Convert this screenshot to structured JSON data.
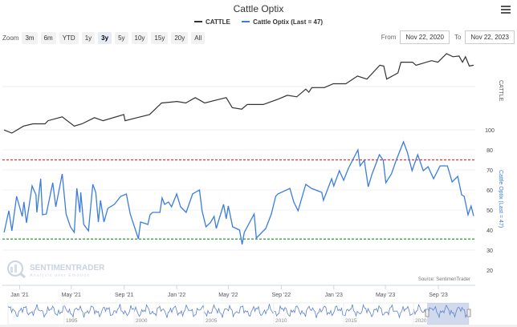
{
  "title": "Cattle Optix",
  "legend": [
    {
      "name": "CATTLE",
      "color": "#333333"
    },
    {
      "name": "Cattle Optix (Last = 47)",
      "color": "#3b7ddd"
    }
  ],
  "zoom": {
    "label": "Zoom",
    "buttons": [
      "3m",
      "6m",
      "YTD",
      "1y",
      "3y",
      "5y",
      "10y",
      "15y",
      "20y",
      "All"
    ],
    "selected": "3y"
  },
  "range": {
    "from_label": "From",
    "from": "Nov 22, 2020",
    "to_label": "To",
    "to": "Nov 22, 2023"
  },
  "icons": {
    "menu": "hamburger-menu-icon",
    "logo": "sentimentrader-logo"
  },
  "logo": {
    "name": "SENTIMENTRADER",
    "tagline": "Analysis over Emotion"
  },
  "source": "Source: SentimenTrader",
  "chart_data": {
    "type": "line",
    "x_range": [
      "2020-11-22",
      "2023-11-22"
    ],
    "x_ticks": [
      "Jan '21",
      "May '21",
      "Sep '21",
      "Jan '22",
      "May '22",
      "Sep '22",
      "Jan '23",
      "May '23",
      "Sep '23"
    ],
    "x_tick_dates": [
      "2021-01-01",
      "2021-05-01",
      "2021-09-01",
      "2022-01-01",
      "2022-05-01",
      "2022-09-01",
      "2023-01-01",
      "2023-05-01",
      "2023-09-01"
    ],
    "grid": true,
    "legend_placement": "top-center",
    "panes": [
      {
        "ylabel": "CATTLE",
        "series": [
          {
            "name": "CATTLE",
            "color": "#333333",
            "points": [
              [
                "2020-11-26",
                4
              ],
              [
                "2020-12-14",
                0
              ],
              [
                "2021-01-10",
                9
              ],
              [
                "2021-02-01",
                12
              ],
              [
                "2021-03-01",
                12
              ],
              [
                "2021-03-08",
                16
              ],
              [
                "2021-04-10",
                21
              ],
              [
                "2021-05-08",
                9
              ],
              [
                "2021-05-26",
                12
              ],
              [
                "2021-06-24",
                20
              ],
              [
                "2021-07-14",
                16
              ],
              [
                "2021-08-31",
                24
              ],
              [
                "2021-09-03",
                16
              ],
              [
                "2021-10-01",
                20
              ],
              [
                "2021-10-30",
                24
              ],
              [
                "2021-11-27",
                39
              ],
              [
                "2022-01-02",
                41
              ],
              [
                "2022-01-22",
                39
              ],
              [
                "2022-02-13",
                46
              ],
              [
                "2022-03-07",
                39
              ],
              [
                "2022-04-04",
                43
              ],
              [
                "2022-04-26",
                46
              ],
              [
                "2022-05-10",
                33
              ],
              [
                "2022-06-01",
                31
              ],
              [
                "2022-06-14",
                37
              ],
              [
                "2022-07-21",
                37
              ],
              [
                "2022-08-25",
                44
              ],
              [
                "2022-09-15",
                49
              ],
              [
                "2022-10-07",
                47
              ],
              [
                "2022-10-28",
                57
              ],
              [
                "2022-11-04",
                53
              ],
              [
                "2022-11-11",
                59
              ],
              [
                "2022-12-10",
                59
              ],
              [
                "2022-12-31",
                64
              ],
              [
                "2023-01-29",
                64
              ],
              [
                "2023-02-25",
                74
              ],
              [
                "2023-03-19",
                70
              ],
              [
                "2023-04-18",
                88
              ],
              [
                "2023-04-27",
                87
              ],
              [
                "2023-05-04",
                70
              ],
              [
                "2023-05-30",
                78
              ],
              [
                "2023-06-06",
                92
              ],
              [
                "2023-07-03",
                92
              ],
              [
                "2023-07-11",
                88
              ],
              [
                "2023-08-16",
                94
              ],
              [
                "2023-08-31",
                92
              ],
              [
                "2023-09-20",
                103
              ],
              [
                "2023-10-05",
                99
              ],
              [
                "2023-10-19",
                100
              ],
              [
                "2023-10-27",
                92
              ],
              [
                "2023-11-03",
                99
              ],
              [
                "2023-11-12",
                87
              ],
              [
                "2023-11-22",
                88
              ]
            ]
          }
        ]
      },
      {
        "ylabel": "Cattle Optix (Last = 47)",
        "y_ticks": [
          100,
          80,
          70,
          60,
          50,
          40,
          30,
          20
        ],
        "ylim": [
          20,
          90
        ],
        "reference_lines": [
          {
            "value": 75,
            "color": "#e03030",
            "style": "dashed"
          },
          {
            "value": 35.5,
            "color": "#2e9a3a",
            "style": "dashed"
          }
        ],
        "series": [
          {
            "name": "Cattle Optix (Last = 47)",
            "color": "#3b7ddd",
            "last": 47,
            "points": [
              [
                "2020-11-26",
                38.8
              ],
              [
                "2020-12-07",
                49.6
              ],
              [
                "2020-12-14",
                39.6
              ],
              [
                "2020-12-25",
                56.8
              ],
              [
                "2021-01-07",
                46.8
              ],
              [
                "2021-01-11",
                54
              ],
              [
                "2021-01-17",
                43.6
              ],
              [
                "2021-01-30",
                62
              ],
              [
                "2021-02-08",
                57.6
              ],
              [
                "2021-02-10",
                48.8
              ],
              [
                "2021-02-19",
                65.6
              ],
              [
                "2021-02-23",
                47.6
              ],
              [
                "2021-03-04",
                48
              ],
              [
                "2021-03-19",
                63.6
              ],
              [
                "2021-03-26",
                51.6
              ],
              [
                "2021-04-10",
                68
              ],
              [
                "2021-04-19",
                48
              ],
              [
                "2021-04-29",
                41.6
              ],
              [
                "2021-05-08",
                38.8
              ],
              [
                "2021-05-14",
                60.8
              ],
              [
                "2021-05-21",
                48.8
              ],
              [
                "2021-05-23",
                58.8
              ],
              [
                "2021-05-30",
                42.8
              ],
              [
                "2021-06-10",
                39.6
              ],
              [
                "2021-06-20",
                62.8
              ],
              [
                "2021-06-27",
                58.8
              ],
              [
                "2021-07-03",
                44
              ],
              [
                "2021-07-08",
                54.8
              ],
              [
                "2021-07-16",
                44
              ],
              [
                "2021-07-25",
                50.8
              ],
              [
                "2021-08-09",
                52.8
              ],
              [
                "2021-08-24",
                56.8
              ],
              [
                "2021-09-06",
                58
              ],
              [
                "2021-09-15",
                48
              ],
              [
                "2021-10-04",
                35.6
              ],
              [
                "2021-10-09",
                44
              ],
              [
                "2021-10-26",
                42.8
              ],
              [
                "2021-10-31",
                47.6
              ],
              [
                "2021-11-06",
                48.8
              ],
              [
                "2021-11-23",
                48.8
              ],
              [
                "2021-11-28",
                56
              ],
              [
                "2021-12-04",
                52.8
              ],
              [
                "2021-12-13",
                54
              ],
              [
                "2021-12-20",
                51.6
              ],
              [
                "2022-01-01",
                58
              ],
              [
                "2022-01-10",
                51.6
              ],
              [
                "2022-01-23",
                48.8
              ],
              [
                "2022-02-07",
                58
              ],
              [
                "2022-02-23",
                60
              ],
              [
                "2022-03-01",
                49.6
              ],
              [
                "2022-03-10",
                41.6
              ],
              [
                "2022-03-20",
                43.6
              ],
              [
                "2022-03-29",
                46.8
              ],
              [
                "2022-04-03",
                40.8
              ],
              [
                "2022-04-20",
                52.8
              ],
              [
                "2022-04-26",
                45.6
              ],
              [
                "2022-05-01",
                52
              ],
              [
                "2022-05-11",
                41.6
              ],
              [
                "2022-05-27",
                40
              ],
              [
                "2022-06-02",
                32.8
              ],
              [
                "2022-06-07",
                38.8
              ],
              [
                "2022-06-20",
                44
              ],
              [
                "2022-06-30",
                48
              ],
              [
                "2022-07-05",
                36
              ],
              [
                "2022-07-27",
                40.8
              ],
              [
                "2022-08-09",
                48
              ],
              [
                "2022-08-19",
                56.8
              ],
              [
                "2022-08-24",
                58
              ],
              [
                "2022-09-21",
                60.8
              ],
              [
                "2022-09-30",
                54
              ],
              [
                "2022-10-10",
                49.6
              ],
              [
                "2022-10-28",
                62.8
              ],
              [
                "2022-11-10",
                60.8
              ],
              [
                "2022-12-04",
                58.8
              ],
              [
                "2022-12-08",
                54.8
              ],
              [
                "2022-12-27",
                65.6
              ],
              [
                "2023-01-01",
                62
              ],
              [
                "2023-01-14",
                69.6
              ],
              [
                "2023-01-24",
                64.8
              ],
              [
                "2023-02-04",
                70.8
              ],
              [
                "2023-02-26",
                80
              ],
              [
                "2023-03-03",
                72
              ],
              [
                "2023-03-13",
                74.8
              ],
              [
                "2023-03-22",
                61.6
              ],
              [
                "2023-03-31",
                68
              ],
              [
                "2023-04-17",
                77.6
              ],
              [
                "2023-04-26",
                74.8
              ],
              [
                "2023-05-02",
                63.6
              ],
              [
                "2023-05-15",
                68
              ],
              [
                "2023-05-26",
                74.8
              ],
              [
                "2023-06-12",
                84
              ],
              [
                "2023-06-21",
                78.8
              ],
              [
                "2023-07-02",
                69.6
              ],
              [
                "2023-07-15",
                77.6
              ],
              [
                "2023-07-28",
                69.6
              ],
              [
                "2023-08-08",
                71.6
              ],
              [
                "2023-08-21",
                65.6
              ],
              [
                "2023-09-05",
                72
              ],
              [
                "2023-09-22",
                72
              ],
              [
                "2023-10-03",
                64
              ],
              [
                "2023-10-16",
                66.8
              ],
              [
                "2023-10-25",
                57.6
              ],
              [
                "2023-10-31",
                56.8
              ],
              [
                "2023-11-09",
                47.6
              ],
              [
                "2023-11-16",
                52
              ],
              [
                "2023-11-22",
                47
              ]
            ]
          }
        ]
      }
    ],
    "navigator": {
      "x_ticks": [
        "1995",
        "2000",
        "2005",
        "2010",
        "2015",
        "2020"
      ],
      "selected_range": [
        "2020-11-22",
        "2023-11-22"
      ]
    }
  }
}
